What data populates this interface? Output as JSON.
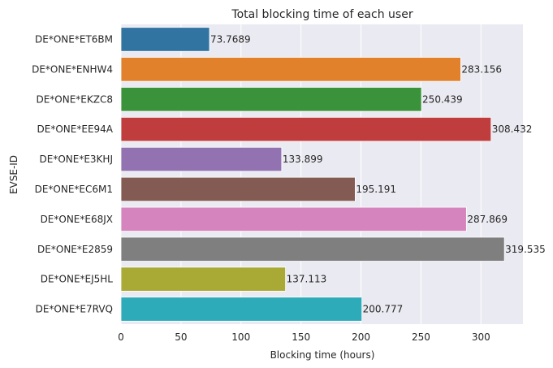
{
  "chart_data": {
    "type": "bar",
    "orientation": "horizontal",
    "title": "Total blocking time of each user",
    "xlabel": "Blocking time (hours)",
    "ylabel": "EVSE-ID",
    "xlim": [
      0,
      335
    ],
    "xticks": [
      "0",
      "50",
      "100",
      "150",
      "200",
      "250",
      "300"
    ],
    "grid": true,
    "background": "#eaeaf2",
    "categories": [
      "DE*ONE*ET6BM",
      "DE*ONE*ENHW4",
      "DE*ONE*EKZC8",
      "DE*ONE*EE94A",
      "DE*ONE*E3KHJ",
      "DE*ONE*EC6M1",
      "DE*ONE*E68JX",
      "DE*ONE*E2859",
      "DE*ONE*EJ5HL",
      "DE*ONE*E7RVQ"
    ],
    "values": [
      73.7689,
      283.156,
      250.439,
      308.432,
      133.899,
      195.191,
      287.869,
      319.535,
      137.113,
      200.777
    ],
    "value_labels": [
      "73.7689",
      "283.156",
      "250.439",
      "308.432",
      "133.899",
      "195.191",
      "287.869",
      "319.535",
      "137.113",
      "200.777"
    ],
    "colors": [
      "#3274a1",
      "#e1812c",
      "#3a923a",
      "#c03d3e",
      "#9372b2",
      "#845b53",
      "#d684bd",
      "#7f7f7f",
      "#a9aa35",
      "#2eabb8"
    ]
  }
}
